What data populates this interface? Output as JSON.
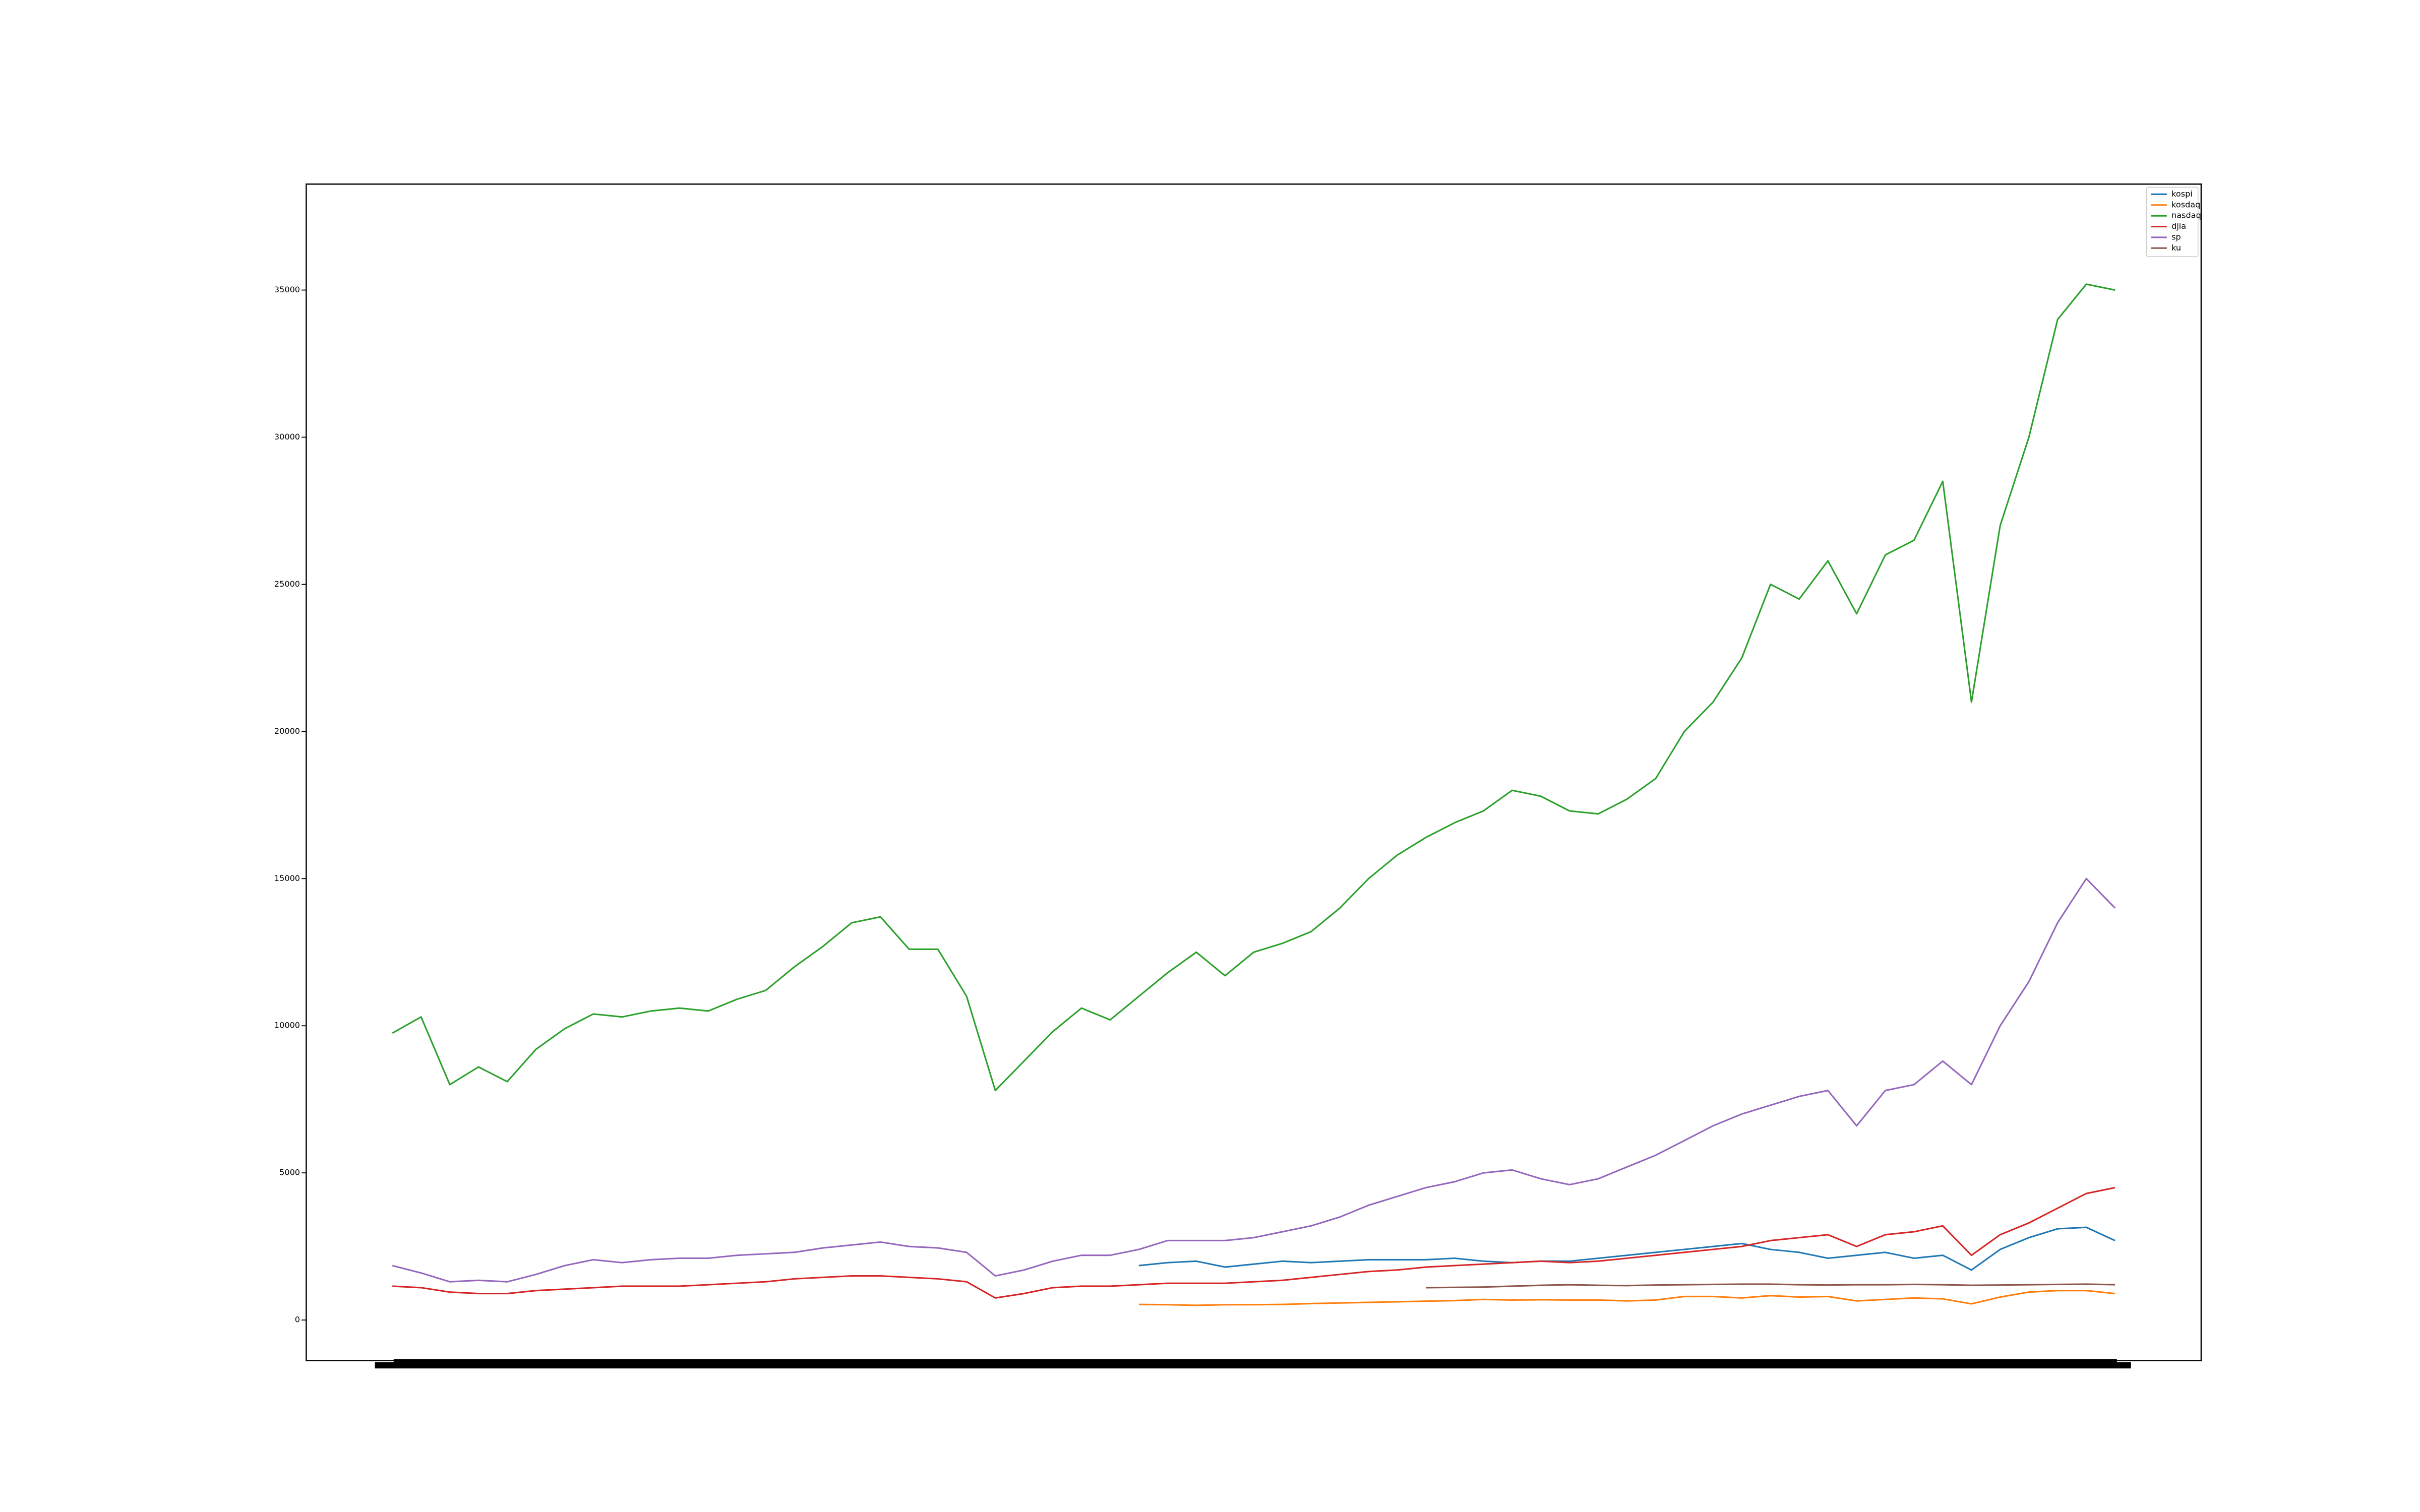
{
  "chart_data": {
    "type": "line",
    "categories": [
      null,
      null,
      null,
      null,
      null,
      null,
      null,
      null,
      null,
      null,
      null,
      null,
      null,
      null,
      null,
      null,
      null,
      null,
      null,
      null,
      null,
      null,
      null,
      null,
      null,
      null,
      null,
      null,
      null,
      null,
      null,
      null,
      null,
      null,
      null,
      null,
      null,
      null,
      null,
      null,
      null,
      null,
      null,
      null,
      null,
      null,
      null,
      null,
      null,
      null,
      null,
      null,
      null,
      null,
      null,
      null,
      null,
      null,
      null,
      null,
      null
    ],
    "ylim": [
      -1380,
      38600
    ],
    "yticks": [
      0,
      5000,
      10000,
      15000,
      20000,
      25000,
      30000,
      35000
    ],
    "grid": false,
    "legend": "upper right",
    "series": [
      {
        "name": "kospi",
        "color": "#1f77b4",
        "values": [
          null,
          null,
          null,
          null,
          null,
          null,
          null,
          null,
          null,
          null,
          null,
          null,
          null,
          null,
          null,
          null,
          null,
          null,
          null,
          null,
          null,
          null,
          null,
          null,
          null,
          null,
          1850,
          1950,
          2000,
          1800,
          1900,
          2000,
          1950,
          2000,
          2050,
          2050,
          2050,
          2100,
          2000,
          1950,
          2000,
          2000,
          2100,
          2200,
          2300,
          2400,
          2500,
          2600,
          2400,
          2300,
          2100,
          2200,
          2300,
          2100,
          2200,
          1700,
          2400,
          2800,
          3100,
          3150,
          2700
        ]
      },
      {
        "name": "kosdaq",
        "color": "#ff7f0e",
        "values": [
          null,
          null,
          null,
          null,
          null,
          null,
          null,
          null,
          null,
          null,
          null,
          null,
          null,
          null,
          null,
          null,
          null,
          null,
          null,
          null,
          null,
          null,
          null,
          null,
          null,
          null,
          530,
          520,
          500,
          520,
          520,
          530,
          560,
          580,
          600,
          620,
          640,
          660,
          700,
          680,
          690,
          680,
          680,
          650,
          680,
          800,
          800,
          750,
          830,
          780,
          800,
          650,
          700,
          750,
          720,
          550,
          780,
          950,
          1000,
          1000,
          900
        ]
      },
      {
        "name": "nasdaq",
        "color": "#2ca02c",
        "values": [
          9750,
          10300,
          8000,
          8600,
          8100,
          9200,
          9900,
          10400,
          10300,
          10500,
          10600,
          10500,
          10900,
          11200,
          12000,
          12700,
          13500,
          13700,
          12600,
          12600,
          11000,
          7800,
          8800,
          9800,
          10600,
          10200,
          11000,
          11800,
          12500,
          11700,
          12500,
          12800,
          13200,
          14000,
          15000,
          15800,
          16400,
          16900,
          17300,
          18000,
          17800,
          17300,
          17200,
          17700,
          18400,
          20000,
          21000,
          22500,
          25000,
          24500,
          25800,
          24000,
          26000,
          26500,
          28500,
          21000,
          27000,
          30000,
          34000,
          35200,
          35000
        ]
      },
      {
        "name": "djia",
        "color": "#d62728",
        "values": [
          1150,
          1100,
          950,
          900,
          900,
          1000,
          1050,
          1100,
          1150,
          1150,
          1150,
          1200,
          1250,
          1300,
          1400,
          1450,
          1500,
          1500,
          1450,
          1400,
          1300,
          750,
          900,
          1100,
          1150,
          1150,
          1200,
          1250,
          1250,
          1250,
          1300,
          1350,
          1450,
          1550,
          1650,
          1700,
          1800,
          1850,
          1900,
          1950,
          2000,
          1950,
          2000,
          2100,
          2200,
          2300,
          2400,
          2500,
          2700,
          2800,
          2900,
          2500,
          2900,
          3000,
          3200,
          2200,
          2900,
          3300,
          3800,
          4300,
          4500
        ]
      },
      {
        "name": "sp",
        "color": "#9467bd",
        "values": [
          1850,
          1600,
          1300,
          1350,
          1300,
          1550,
          1850,
          2050,
          1950,
          2050,
          2100,
          2100,
          2200,
          2250,
          2300,
          2450,
          2550,
          2650,
          2500,
          2450,
          2300,
          1500,
          1700,
          2000,
          2200,
          2200,
          2400,
          2700,
          2700,
          2700,
          2800,
          3000,
          3200,
          3500,
          3900,
          4200,
          4500,
          4700,
          5000,
          5100,
          4800,
          4600,
          4800,
          5200,
          5600,
          6100,
          6600,
          7000,
          7300,
          7600,
          7800,
          6600,
          7800,
          8000,
          8800,
          8000,
          10000,
          11500,
          13500,
          15000,
          14000
        ]
      },
      {
        "name": "ku",
        "color": "#8c564b",
        "values": [
          null,
          null,
          null,
          null,
          null,
          null,
          null,
          null,
          null,
          null,
          null,
          null,
          null,
          null,
          null,
          null,
          null,
          null,
          null,
          null,
          null,
          null,
          null,
          null,
          null,
          null,
          null,
          null,
          null,
          null,
          null,
          null,
          null,
          null,
          null,
          null,
          1100,
          1110,
          1120,
          1150,
          1180,
          1200,
          1180,
          1170,
          1190,
          1200,
          1210,
          1220,
          1220,
          1200,
          1190,
          1200,
          1200,
          1210,
          1200,
          1180,
          1190,
          1200,
          1210,
          1220,
          1200
        ]
      }
    ]
  }
}
